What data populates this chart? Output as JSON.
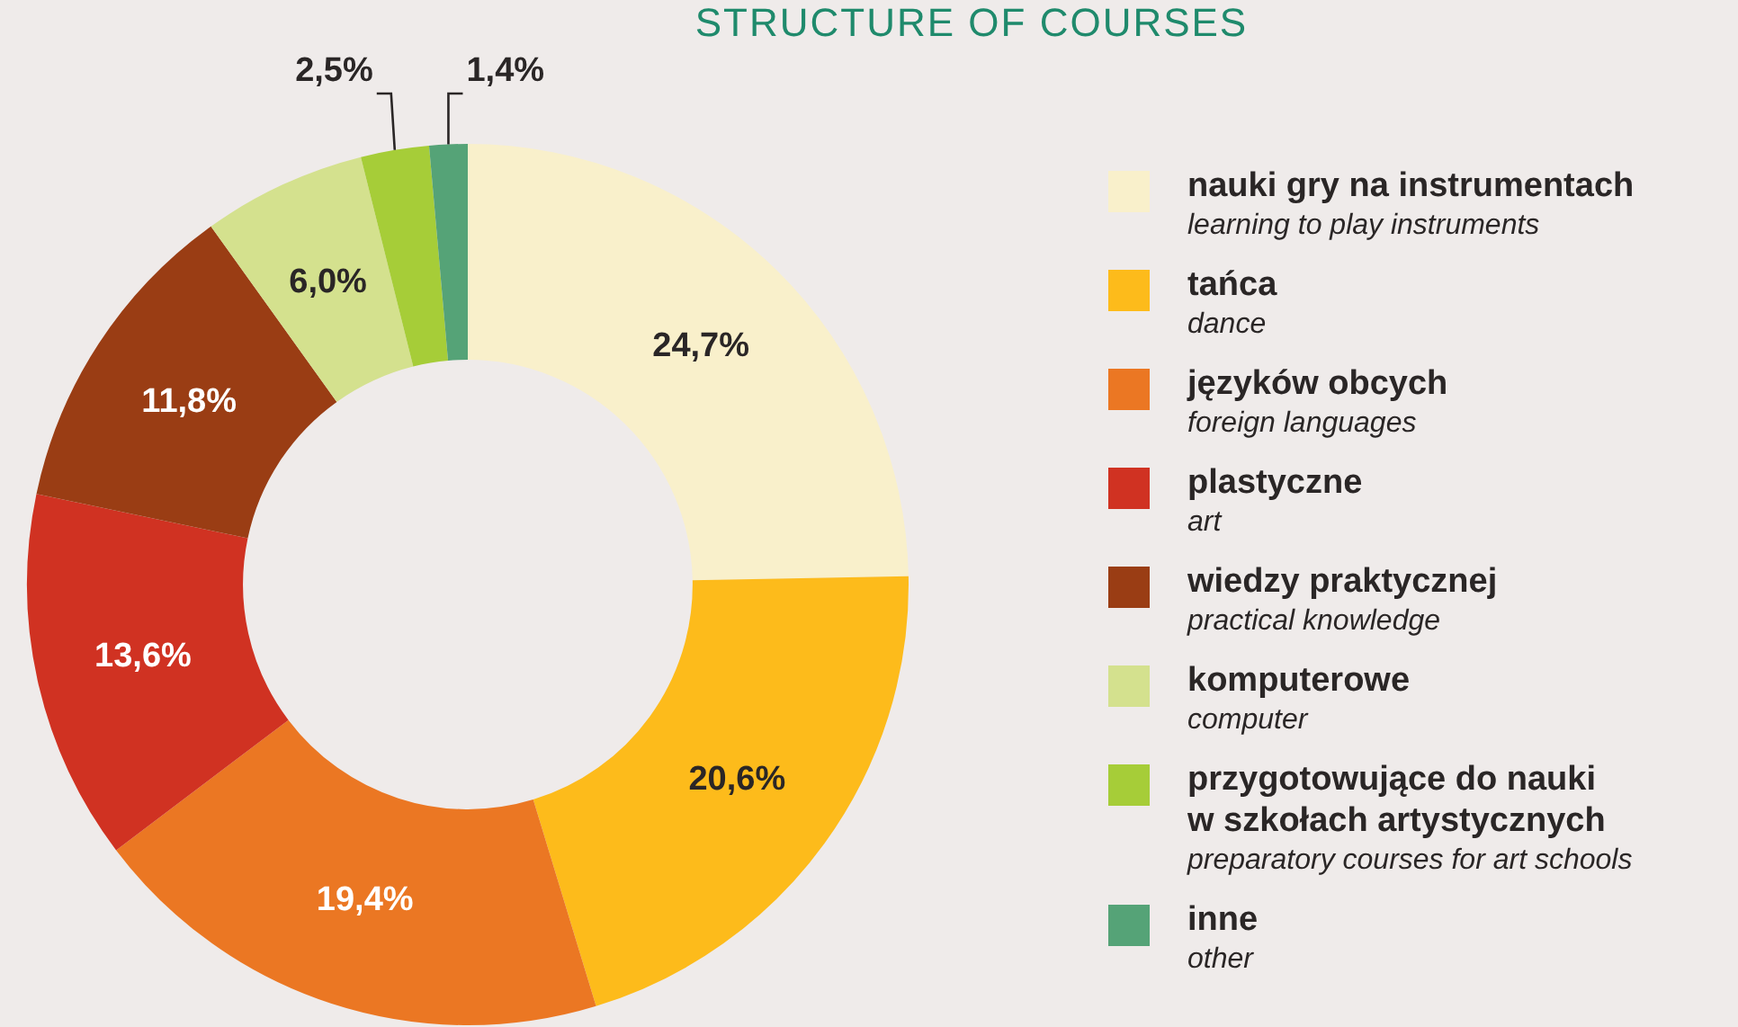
{
  "chart_data": {
    "type": "donut",
    "title": "STRUCTURE OF COURSES",
    "categories": [
      "nauki gry na instrumentach\nlearning to play instruments",
      "tańca\ndance",
      "języków obcych\nforeign languages",
      "plastyczne\nart",
      "wiedzy praktycznej\npractical knowledge",
      "komputerowe\ncomputer",
      "przygotowujące do nauki\nw szkołach artystycznych\npreparatory courses for art schools",
      "inne\nother"
    ],
    "values": [
      24.7,
      20.6,
      19.4,
      13.6,
      11.8,
      6.0,
      2.5,
      1.4
    ],
    "value_labels": [
      "24,7%",
      "20,6%",
      "19,4%",
      "13,6%",
      "11,8%",
      "6,0%",
      "2,5%",
      "1,4%"
    ],
    "colors": [
      "#f9f0cb",
      "#fdbb1b",
      "#eb7723",
      "#d03222",
      "#9a3d14",
      "#d4e18e",
      "#a6cd38",
      "#55a377"
    ],
    "legend": "right"
  }
}
